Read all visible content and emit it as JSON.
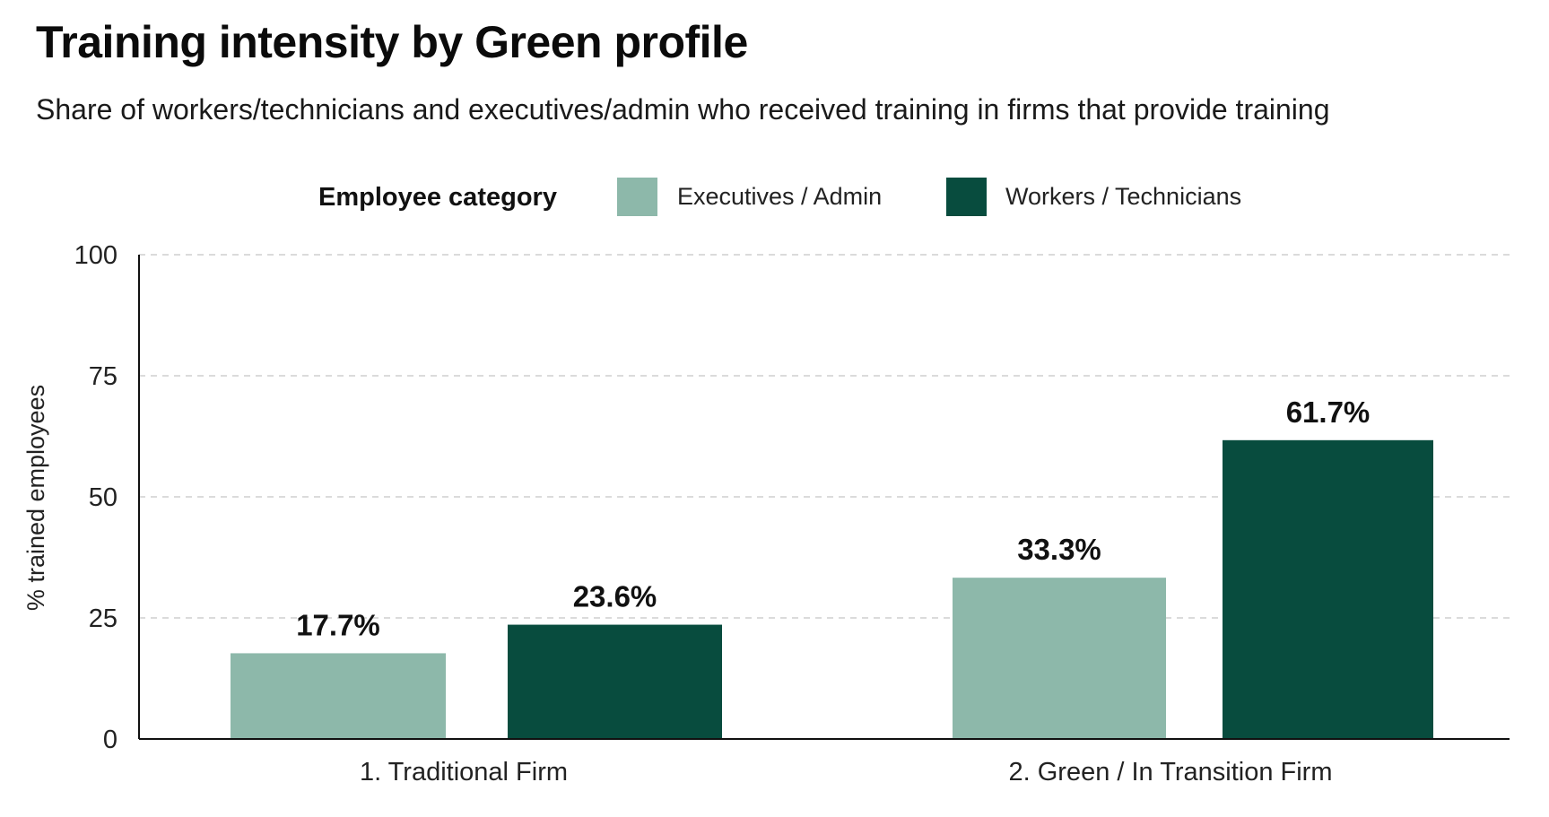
{
  "colors": {
    "executives": "#8db8aa",
    "workers": "#084c3e",
    "grid": "#cfcfcf",
    "axis": "#111111"
  },
  "chart_data": {
    "type": "bar",
    "title": "Training intensity by Green profile",
    "subtitle": "Share of workers/technicians and executives/admin who received training in firms that provide training",
    "xlabel": "",
    "ylabel": "% trained employees",
    "ylim": [
      0,
      100
    ],
    "yticks": [
      0,
      25,
      50,
      75,
      100
    ],
    "grid": "horizontal dashed",
    "legend_title": "Employee category",
    "legend_position": "top-center",
    "categories": [
      "1. Traditional Firm",
      "2. Green / In Transition Firm"
    ],
    "series": [
      {
        "name": "Executives / Admin",
        "color_key": "executives",
        "values": [
          17.7,
          33.3
        ],
        "labels": [
          "17.7%",
          "33.3%"
        ]
      },
      {
        "name": "Workers / Technicians",
        "color_key": "workers",
        "values": [
          23.6,
          61.7
        ],
        "labels": [
          "23.6%",
          "61.7%"
        ]
      }
    ]
  }
}
